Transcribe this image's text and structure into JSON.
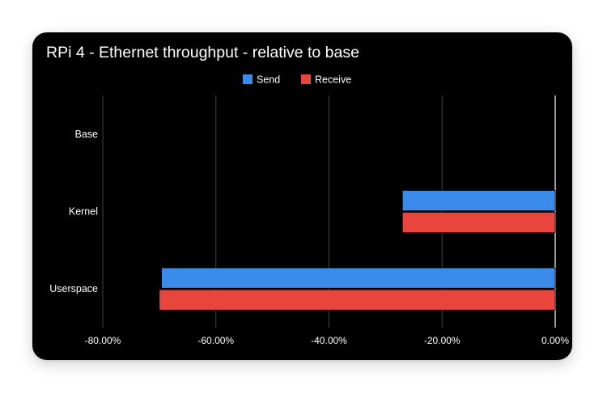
{
  "chart_data": {
    "type": "bar",
    "orientation": "horizontal",
    "title": "RPi 4 - Ethernet throughput - relative to base",
    "xlabel": "",
    "ylabel": "",
    "categories": [
      "Base",
      "Kernel",
      "Userspace"
    ],
    "series": [
      {
        "name": "Send",
        "color": "#3b8beb",
        "values": [
          0,
          -0.27,
          -0.696
        ]
      },
      {
        "name": "Receive",
        "color": "#e8453c",
        "values": [
          0,
          -0.27,
          -0.7
        ]
      }
    ],
    "xlim": [
      -0.8,
      0
    ],
    "x_ticks": [
      -0.8,
      -0.6,
      -0.4,
      -0.2,
      0
    ],
    "x_tick_labels": [
      "-80.00%",
      "-60.00%",
      "-40.00%",
      "-20.00%",
      "0.00%"
    ],
    "grid": true,
    "legend_position": "top",
    "background": "#000000",
    "text_color": "#ffffff",
    "grid_color": "#444444"
  }
}
